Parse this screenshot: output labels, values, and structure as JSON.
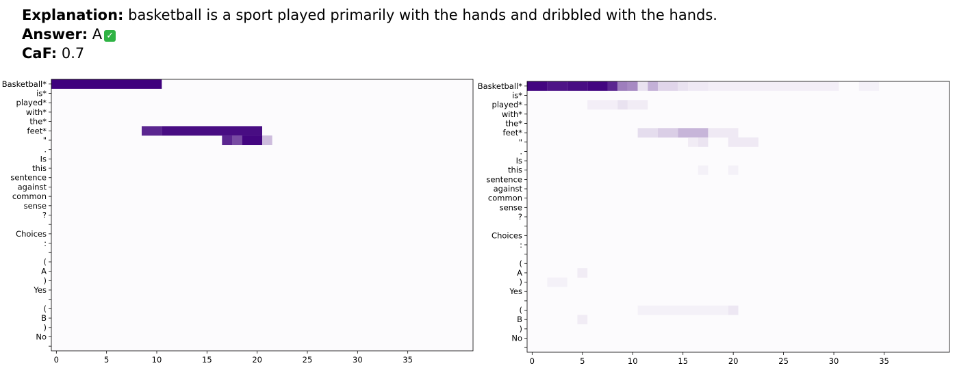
{
  "header": {
    "explanation_label": "Explanation:",
    "explanation_text": "basketball is a sport played primarily with the hands and dribbled with the hands.",
    "answer_label": "Answer:",
    "answer_value": "A",
    "answer_check_icon": "check-mark-icon",
    "caf_label": "CaF:",
    "caf_value": "0.7"
  },
  "colors": {
    "cell_max": "#3f007d",
    "cell_min": "#fcfbfd",
    "background": "#fcfbfd"
  },
  "chart_data": [
    {
      "type": "heatmap",
      "title": "",
      "xlabel": "",
      "ylabel": "",
      "x_ticks": [
        0,
        5,
        10,
        15,
        20,
        25,
        30,
        35
      ],
      "xlim": [
        -0.5,
        41.5
      ],
      "rows": [
        "Basketball*",
        "is*",
        "played*",
        "with*",
        "the*",
        "feet*",
        "\"",
        ".",
        "Is",
        "this",
        "sentence",
        "against",
        "common",
        "sense",
        "?",
        "",
        "Choices",
        ":",
        "",
        "(",
        "A",
        ")",
        "Yes",
        "",
        "(",
        "B",
        ")",
        "No",
        ""
      ],
      "cells": [
        {
          "row": 0,
          "x0": 0,
          "x1": 10,
          "v": 1.0
        },
        {
          "row": 5,
          "x0": 9,
          "x1": 10,
          "v": 0.85
        },
        {
          "row": 5,
          "x0": 11,
          "x1": 20,
          "v": 0.95
        },
        {
          "row": 6,
          "x0": 17,
          "x1": 17,
          "v": 0.85
        },
        {
          "row": 6,
          "x0": 18,
          "x1": 18,
          "v": 0.7
        },
        {
          "row": 6,
          "x0": 19,
          "x1": 20,
          "v": 0.98
        },
        {
          "row": 6,
          "x0": 21,
          "x1": 21,
          "v": 0.25
        }
      ]
    },
    {
      "type": "heatmap",
      "title": "",
      "xlabel": "",
      "ylabel": "",
      "x_ticks": [
        0,
        5,
        10,
        15,
        20,
        25,
        30,
        35
      ],
      "xlim": [
        -0.5,
        41.5
      ],
      "rows": [
        "Basketball*",
        "is*",
        "played*",
        "with*",
        "the*",
        "feet*",
        "\"",
        ".",
        "Is",
        "this",
        "sentence",
        "against",
        "common",
        "sense",
        "?",
        "",
        "Choices",
        ":",
        "",
        "(",
        "A",
        ")",
        "Yes",
        "",
        "(",
        "B",
        ")",
        "No",
        ""
      ],
      "cells": [
        {
          "row": 0,
          "x0": 0,
          "x1": 1,
          "v": 0.98
        },
        {
          "row": 0,
          "x0": 2,
          "x1": 3,
          "v": 0.92
        },
        {
          "row": 0,
          "x0": 4,
          "x1": 5,
          "v": 0.95
        },
        {
          "row": 0,
          "x0": 6,
          "x1": 7,
          "v": 0.98
        },
        {
          "row": 0,
          "x0": 8,
          "x1": 8,
          "v": 0.85
        },
        {
          "row": 0,
          "x0": 9,
          "x1": 9,
          "v": 0.5
        },
        {
          "row": 0,
          "x0": 10,
          "x1": 10,
          "v": 0.45
        },
        {
          "row": 0,
          "x0": 11,
          "x1": 11,
          "v": 0.1
        },
        {
          "row": 0,
          "x0": 12,
          "x1": 12,
          "v": 0.3
        },
        {
          "row": 0,
          "x0": 13,
          "x1": 14,
          "v": 0.15
        },
        {
          "row": 0,
          "x0": 15,
          "x1": 15,
          "v": 0.1
        },
        {
          "row": 0,
          "x0": 16,
          "x1": 17,
          "v": 0.07
        },
        {
          "row": 0,
          "x0": 18,
          "x1": 30,
          "v": 0.05
        },
        {
          "row": 0,
          "x0": 33,
          "x1": 34,
          "v": 0.04
        },
        {
          "row": 2,
          "x0": 6,
          "x1": 8,
          "v": 0.05
        },
        {
          "row": 2,
          "x0": 9,
          "x1": 9,
          "v": 0.1
        },
        {
          "row": 2,
          "x0": 10,
          "x1": 11,
          "v": 0.06
        },
        {
          "row": 5,
          "x0": 11,
          "x1": 12,
          "v": 0.12
        },
        {
          "row": 5,
          "x0": 13,
          "x1": 14,
          "v": 0.18
        },
        {
          "row": 5,
          "x0": 15,
          "x1": 17,
          "v": 0.28
        },
        {
          "row": 5,
          "x0": 18,
          "x1": 20,
          "v": 0.07
        },
        {
          "row": 6,
          "x0": 16,
          "x1": 16,
          "v": 0.06
        },
        {
          "row": 6,
          "x0": 17,
          "x1": 17,
          "v": 0.09
        },
        {
          "row": 6,
          "x0": 20,
          "x1": 22,
          "v": 0.07
        },
        {
          "row": 9,
          "x0": 17,
          "x1": 17,
          "v": 0.04
        },
        {
          "row": 9,
          "x0": 20,
          "x1": 20,
          "v": 0.04
        },
        {
          "row": 24,
          "x0": 11,
          "x1": 19,
          "v": 0.04
        },
        {
          "row": 24,
          "x0": 20,
          "x1": 20,
          "v": 0.08
        },
        {
          "row": 25,
          "x0": 5,
          "x1": 5,
          "v": 0.06
        },
        {
          "row": 20,
          "x0": 5,
          "x1": 5,
          "v": 0.06
        },
        {
          "row": 21,
          "x0": 2,
          "x1": 3,
          "v": 0.04
        }
      ]
    }
  ]
}
